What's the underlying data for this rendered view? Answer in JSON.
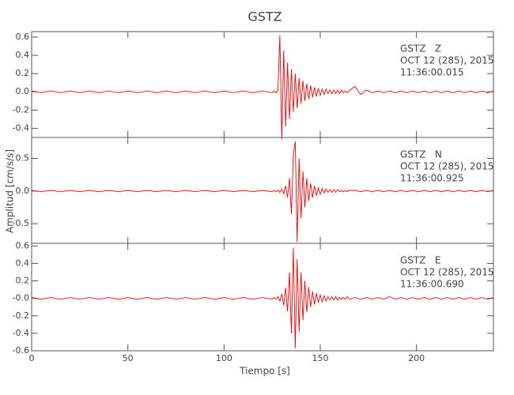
{
  "chart_data": [
    {
      "type": "line",
      "title": "GSTZ",
      "color": "#ff0000",
      "annotations": [
        "GSTZ   Z",
        "OCT 12 (285), 2015",
        "11:36:00.015"
      ],
      "xlim": [
        0,
        240
      ],
      "xticks": [
        0,
        50,
        100,
        150,
        200
      ],
      "ylim": [
        -0.5,
        0.66
      ],
      "yticks": [
        -0.4,
        -0.2,
        {
          "value": 0,
          "label": "0.0"
        },
        0.2,
        0.4,
        0.6
      ],
      "x": [
        0,
        5,
        10,
        15,
        20,
        25,
        30,
        35,
        40,
        45,
        50,
        55,
        60,
        65,
        70,
        75,
        80,
        85,
        90,
        95,
        100,
        105,
        110,
        115,
        120,
        125,
        126,
        127,
        128,
        129,
        130,
        131,
        132,
        133,
        134,
        135,
        136,
        137,
        138,
        139,
        140,
        141,
        142,
        143,
        144,
        145,
        146,
        147,
        148,
        149,
        150,
        151,
        152,
        153,
        154,
        155,
        156,
        157,
        158,
        159,
        160,
        161,
        162,
        163,
        164,
        165,
        168,
        171,
        174,
        177,
        180,
        183,
        186,
        189,
        192,
        195,
        198,
        201,
        204,
        207,
        210,
        213,
        216,
        219,
        222,
        225,
        228,
        231,
        234,
        237,
        240
      ],
      "values": [
        0.01,
        -0.01,
        0.01,
        -0.01,
        0.01,
        -0.01,
        0.01,
        -0.01,
        0.01,
        -0.01,
        0.01,
        -0.01,
        0.01,
        -0.01,
        0.01,
        -0.01,
        0.01,
        -0.01,
        0.01,
        -0.01,
        0.01,
        -0.01,
        0.01,
        -0.01,
        0.01,
        -0.01,
        0.01,
        -0.01,
        0.02,
        0.62,
        -0.52,
        0.45,
        -0.38,
        0.32,
        -0.3,
        0.25,
        -0.22,
        0.2,
        -0.18,
        0.15,
        -0.13,
        0.12,
        -0.1,
        0.09,
        -0.08,
        0.07,
        -0.06,
        0.05,
        -0.05,
        0.04,
        -0.04,
        0.03,
        -0.03,
        0.03,
        -0.02,
        0.02,
        -0.02,
        0.02,
        -0.02,
        0.02,
        -0.02,
        0.02,
        -0.01,
        0.01,
        -0.01,
        0.01,
        0.06,
        -0.03,
        0.02,
        -0.01,
        0.01,
        -0.01,
        0.01,
        -0.01,
        0.01,
        -0.01,
        0.01,
        -0.01,
        0.01,
        -0.01,
        0.01,
        -0.01,
        0.01,
        -0.01,
        0.01,
        -0.01,
        0.01,
        -0.01,
        0.01,
        -0.01,
        0.01
      ]
    },
    {
      "type": "line",
      "ylabel": "Amplitud [cm/s/s]",
      "color": "#ff0000",
      "annotations": [
        "GSTZ   N",
        "OCT 12 (285), 2015",
        "11:36:00.925"
      ],
      "xlim": [
        0,
        240
      ],
      "xticks": [
        0,
        50,
        100,
        150,
        200
      ],
      "ylim": [
        -0.8,
        0.82
      ],
      "yticks": [
        -0.5,
        {
          "value": 0,
          "label": "0.0"
        },
        0.5
      ],
      "x": [
        0,
        5,
        10,
        15,
        20,
        25,
        30,
        35,
        40,
        45,
        50,
        55,
        60,
        65,
        70,
        75,
        80,
        85,
        90,
        95,
        100,
        105,
        110,
        115,
        120,
        125,
        126,
        127,
        128,
        129,
        130,
        131,
        132,
        133,
        134,
        135,
        136,
        137,
        138,
        139,
        140,
        141,
        142,
        143,
        144,
        145,
        146,
        147,
        148,
        149,
        150,
        151,
        152,
        153,
        154,
        155,
        156,
        157,
        158,
        159,
        160,
        161,
        162,
        163,
        164,
        165,
        168,
        171,
        174,
        177,
        180,
        183,
        186,
        189,
        192,
        195,
        198,
        201,
        204,
        207,
        210,
        213,
        216,
        219,
        222,
        225,
        228,
        231,
        234,
        237,
        240
      ],
      "values": [
        0.01,
        -0.01,
        0.01,
        -0.01,
        0.01,
        -0.01,
        0.01,
        -0.01,
        0.01,
        -0.01,
        0.01,
        -0.01,
        0.01,
        -0.01,
        0.01,
        -0.01,
        0.01,
        -0.01,
        0.01,
        -0.01,
        0.01,
        -0.01,
        0.01,
        -0.01,
        0.01,
        -0.01,
        0.01,
        -0.01,
        0.01,
        -0.02,
        0.03,
        -0.04,
        0.08,
        -0.1,
        0.2,
        -0.35,
        0.55,
        0.76,
        -0.78,
        0.5,
        -0.42,
        0.3,
        -0.25,
        0.2,
        -0.15,
        0.12,
        -0.1,
        0.08,
        -0.07,
        0.05,
        -0.05,
        0.04,
        -0.03,
        0.03,
        -0.02,
        0.02,
        -0.02,
        0.02,
        -0.02,
        0.02,
        -0.01,
        0.01,
        -0.01,
        0.01,
        -0.01,
        0.01,
        0.01,
        -0.01,
        0.01,
        -0.01,
        0.01,
        -0.01,
        0.01,
        -0.01,
        0.01,
        -0.01,
        0.01,
        -0.01,
        0.01,
        -0.01,
        0.01,
        -0.01,
        0.01,
        -0.01,
        0.01,
        -0.01,
        0.01,
        -0.01,
        0.01,
        -0.01,
        0.01
      ]
    },
    {
      "type": "line",
      "xlabel": "Tiempo [s]",
      "color": "#ff0000",
      "annotations": [
        "GSTZ   E",
        "OCT 12 (285), 2015",
        "11:36:00.690"
      ],
      "xlim": [
        0,
        240
      ],
      "xticks": [
        0,
        50,
        100,
        150,
        200
      ],
      "ylim": [
        -0.6,
        0.63
      ],
      "yticks": [
        -0.6,
        -0.4,
        -0.2,
        {
          "value": 0,
          "label": "-0.0"
        },
        0.2,
        0.4,
        0.6
      ],
      "x": [
        0,
        5,
        10,
        15,
        20,
        25,
        30,
        35,
        40,
        45,
        50,
        55,
        60,
        65,
        70,
        75,
        80,
        85,
        90,
        95,
        100,
        105,
        110,
        115,
        120,
        125,
        126,
        127,
        128,
        129,
        130,
        131,
        132,
        133,
        134,
        135,
        136,
        137,
        138,
        139,
        140,
        141,
        142,
        143,
        144,
        145,
        146,
        147,
        148,
        149,
        150,
        151,
        152,
        153,
        154,
        155,
        156,
        157,
        158,
        159,
        160,
        161,
        162,
        163,
        164,
        165,
        168,
        171,
        174,
        177,
        180,
        183,
        186,
        189,
        192,
        195,
        198,
        201,
        204,
        207,
        210,
        213,
        216,
        219,
        222,
        225,
        228,
        231,
        234,
        237,
        240
      ],
      "values": [
        0.01,
        -0.01,
        0.01,
        -0.01,
        0.01,
        -0.01,
        0.01,
        -0.01,
        0.01,
        -0.01,
        0.01,
        -0.01,
        0.01,
        -0.01,
        0.01,
        -0.01,
        0.01,
        -0.01,
        0.01,
        -0.01,
        0.01,
        -0.01,
        0.01,
        -0.01,
        0.01,
        -0.01,
        0.01,
        -0.01,
        0.02,
        -0.03,
        0.05,
        -0.08,
        0.12,
        -0.15,
        0.3,
        -0.4,
        0.58,
        -0.57,
        0.45,
        -0.38,
        0.3,
        -0.25,
        0.2,
        -0.16,
        0.13,
        -0.1,
        0.08,
        -0.07,
        0.06,
        -0.05,
        0.04,
        -0.04,
        0.03,
        -0.03,
        0.02,
        -0.02,
        0.02,
        -0.02,
        0.02,
        -0.02,
        0.01,
        -0.01,
        0.01,
        -0.01,
        0.02,
        -0.01,
        0.01,
        -0.01,
        0.01,
        -0.01,
        0.01,
        -0.01,
        0.02,
        -0.01,
        0.01,
        -0.01,
        0.01,
        -0.01,
        0.01,
        -0.01,
        0.01,
        -0.01,
        0.01,
        -0.01,
        0.01,
        -0.01,
        0.01,
        -0.01,
        0.01,
        -0.01,
        0.01
      ]
    }
  ]
}
